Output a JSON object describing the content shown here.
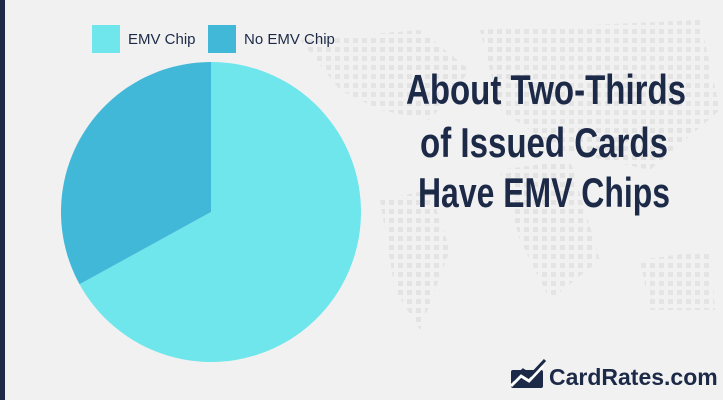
{
  "chart_data": {
    "type": "pie",
    "title": [
      "About Two-Thirds",
      "of  Issued Cards",
      "Have EMV Chips"
    ],
    "categories": [
      "EMV Chip",
      "No EMV Chip"
    ],
    "values": [
      67,
      33
    ],
    "colors": [
      "#6ee6ec",
      "#42b8d8"
    ]
  },
  "footer": {
    "brand": "CardRates.com"
  }
}
